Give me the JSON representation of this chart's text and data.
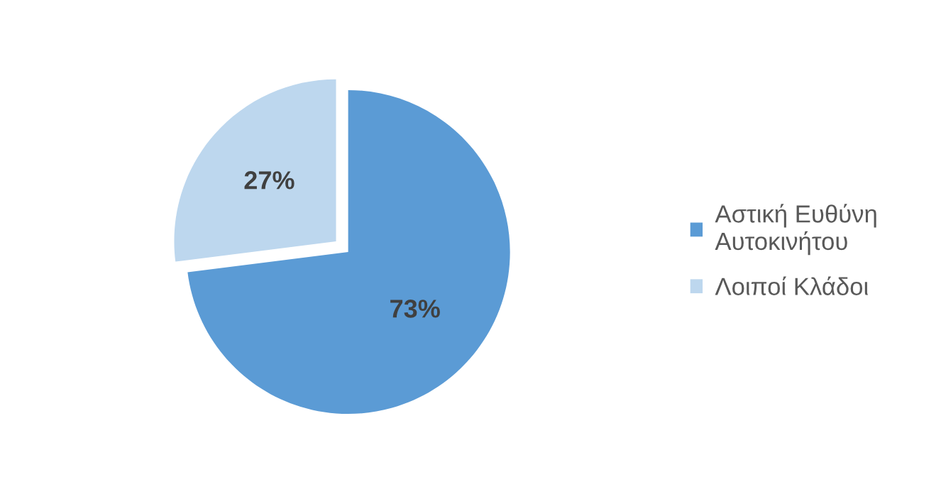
{
  "chart_data": {
    "type": "pie",
    "categories": [
      "Αστική Ευθύνη Αυτοκινήτου",
      "Λοιποί Κλάδοι"
    ],
    "values": [
      73,
      27
    ],
    "value_labels": [
      "73%",
      "27%"
    ],
    "colors": [
      "#5b9bd5",
      "#bdd7ee"
    ],
    "legend": "right"
  }
}
